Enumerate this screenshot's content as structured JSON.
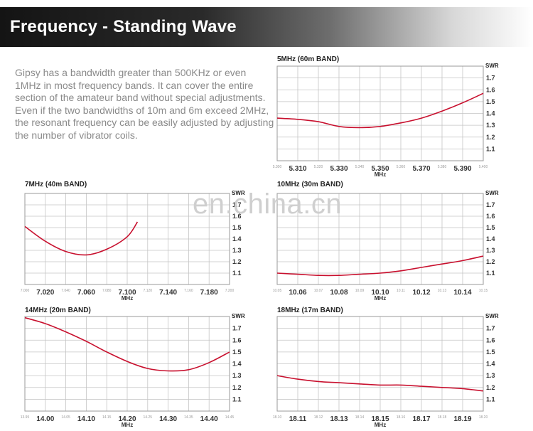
{
  "header": {
    "title": "Frequency - Standing Wave"
  },
  "intro": {
    "text": "Gipsy has a bandwidth greater than 500KHz or even 1MHz in most frequency bands. It can cover the entire section of the amateur band without special adjustments. Even if the two bandwidths of 10m and 6m exceed 2MHz, the resonant frequency can be easily adjusted by adjusting the number of vibrator coils."
  },
  "watermark": {
    "text": "en.china.cn"
  },
  "colors": {
    "curve": "#c8102e",
    "grid": "#c4c4c4",
    "frame": "#9a9a9a"
  },
  "chart_data": [
    {
      "type": "line",
      "title": "5MHz (60m BAND)",
      "xlabel": "MHz",
      "ylabel": "SWR",
      "xlim": [
        5.3,
        5.4
      ],
      "ylim": [
        1.0,
        1.8
      ],
      "xticks": [
        "5.300",
        "5.310",
        "5.320",
        "5.330",
        "5.340",
        "5.350",
        "5.360",
        "5.370",
        "5.380",
        "5.390",
        "5.400"
      ],
      "yticks": [
        "1.1",
        "1.2",
        "1.3",
        "1.4",
        "1.5",
        "1.6",
        "1.7"
      ],
      "x": [
        5.3,
        5.31,
        5.32,
        5.33,
        5.34,
        5.35,
        5.36,
        5.37,
        5.38,
        5.39,
        5.4
      ],
      "values": [
        1.36,
        1.35,
        1.33,
        1.29,
        1.28,
        1.29,
        1.32,
        1.36,
        1.42,
        1.49,
        1.57
      ],
      "grid": true
    },
    {
      "type": "line",
      "title": "7MHz (40m BAND)",
      "xlabel": "MHz",
      "ylabel": "SWR",
      "xlim": [
        7.0,
        7.2
      ],
      "ylim": [
        1.0,
        1.8
      ],
      "xticks": [
        "7.000",
        "7.020",
        "7.040",
        "7.060",
        "7.080",
        "7.100",
        "7.120",
        "7.140",
        "7.160",
        "7.180",
        "7.200"
      ],
      "yticks": [
        "1.1",
        "1.2",
        "1.3",
        "1.4",
        "1.5",
        "1.6",
        "1.7"
      ],
      "x": [
        7.0,
        7.02,
        7.04,
        7.06,
        7.08,
        7.1,
        7.11
      ],
      "values": [
        1.51,
        1.38,
        1.29,
        1.26,
        1.31,
        1.42,
        1.55
      ],
      "grid": true
    },
    {
      "type": "line",
      "title": "10MHz (30m BAND)",
      "xlabel": "MHz",
      "ylabel": "SWR",
      "xlim": [
        10.05,
        10.15
      ],
      "ylim": [
        1.0,
        1.8
      ],
      "xticks": [
        "10.05",
        "10.06",
        "10.07",
        "10.08",
        "10.09",
        "10.10",
        "10.11",
        "10.12",
        "10.13",
        "10.14",
        "10.15"
      ],
      "yticks": [
        "1.1",
        "1.2",
        "1.3",
        "1.4",
        "1.5",
        "1.6",
        "1.7"
      ],
      "x": [
        10.05,
        10.06,
        10.07,
        10.08,
        10.09,
        10.1,
        10.11,
        10.12,
        10.13,
        10.14,
        10.15
      ],
      "values": [
        1.1,
        1.09,
        1.08,
        1.08,
        1.09,
        1.1,
        1.12,
        1.15,
        1.18,
        1.21,
        1.25
      ],
      "grid": true
    },
    {
      "type": "line",
      "title": "14MHz (20m BAND)",
      "xlabel": "MHz",
      "ylabel": "SWR",
      "xlim": [
        13.95,
        14.45
      ],
      "ylim": [
        1.0,
        1.8
      ],
      "xticks": [
        "13.95",
        "14.00",
        "14.05",
        "14.10",
        "14.15",
        "14.20",
        "14.25",
        "14.30",
        "14.35",
        "14.40",
        "14.45"
      ],
      "yticks": [
        "1.1",
        "1.2",
        "1.3",
        "1.4",
        "1.5",
        "1.6",
        "1.7"
      ],
      "x": [
        13.95,
        14.0,
        14.05,
        14.1,
        14.15,
        14.2,
        14.25,
        14.3,
        14.35,
        14.4,
        14.45
      ],
      "values": [
        1.79,
        1.74,
        1.67,
        1.59,
        1.5,
        1.42,
        1.36,
        1.34,
        1.35,
        1.41,
        1.5
      ],
      "grid": true
    },
    {
      "type": "line",
      "title": "18MHz (17m BAND)",
      "xlabel": "MHz",
      "ylabel": "SWR",
      "xlim": [
        18.1,
        18.2
      ],
      "ylim": [
        1.0,
        1.8
      ],
      "xticks": [
        "18.10",
        "18.11",
        "18.12",
        "18.13",
        "18.14",
        "18.15",
        "18.16",
        "18.17",
        "18.18",
        "18.19",
        "18.20"
      ],
      "yticks": [
        "1.1",
        "1.2",
        "1.3",
        "1.4",
        "1.5",
        "1.6",
        "1.7"
      ],
      "x": [
        18.1,
        18.11,
        18.12,
        18.13,
        18.14,
        18.15,
        18.16,
        18.17,
        18.18,
        18.19,
        18.2
      ],
      "values": [
        1.3,
        1.27,
        1.25,
        1.24,
        1.23,
        1.22,
        1.22,
        1.21,
        1.2,
        1.19,
        1.17
      ],
      "grid": true
    }
  ]
}
